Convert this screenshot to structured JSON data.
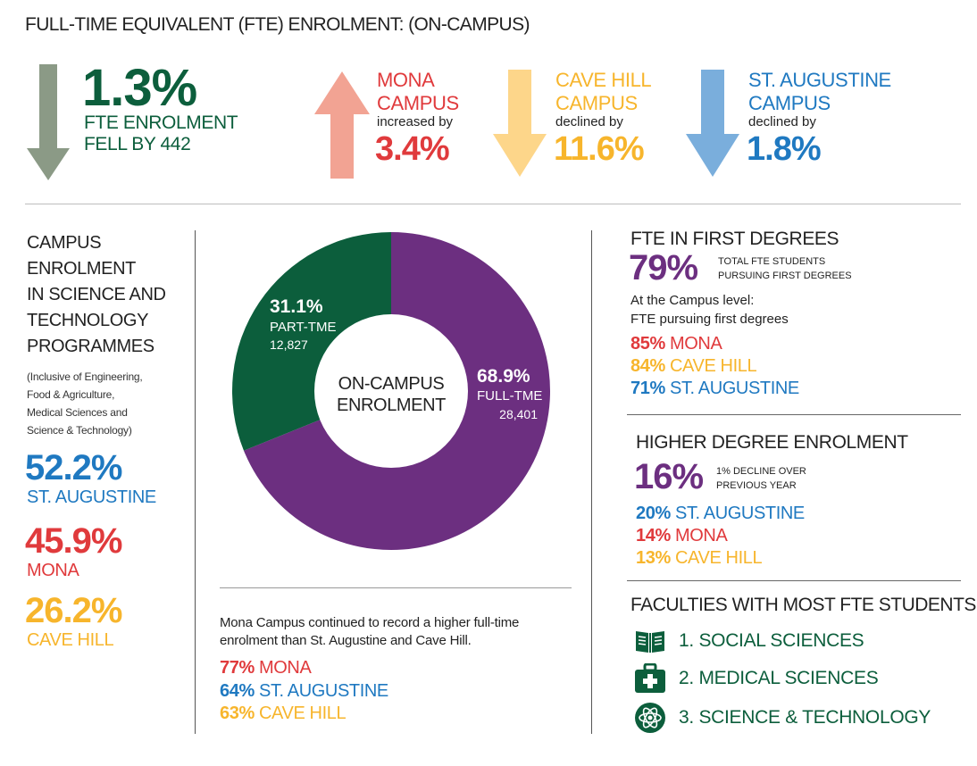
{
  "title": "FULL-TIME EQUIVALENT (FTE) ENROLMENT: (ON-CAMPUS)",
  "colors": {
    "green": "#0c5e3c",
    "grey_green_arrow": "#8b9a86",
    "mona_red": "#e03a3c",
    "mona_arrow": "#f2a393",
    "cave_hill_yellow": "#f7b52c",
    "cave_hill_arrow": "#fdd68a",
    "st_augustine_blue": "#1f79c1",
    "st_augustine_arrow": "#7aaedc",
    "purple": "#6c2f80"
  },
  "headline": {
    "value": "1.3%",
    "line1": "FTE ENROLMENT",
    "line2": "FELL BY 442",
    "icon": "arrow-down-icon"
  },
  "campus_changes": [
    {
      "line1": "MONA",
      "line2": "CAMPUS",
      "direction_text": "increased by",
      "value": "3.4%",
      "icon": "arrow-up-icon"
    },
    {
      "line1": "CAVE HILL",
      "line2": "CAMPUS",
      "direction_text": "declined by",
      "value": "11.6%",
      "icon": "arrow-down-icon"
    },
    {
      "line1": "ST. AUGUSTINE",
      "line2": "CAMPUS",
      "direction_text": "declined by",
      "value": "1.8%",
      "icon": "arrow-down-icon"
    }
  ],
  "science_tech": {
    "heading_lines": [
      "CAMPUS",
      "ENROLMENT",
      "IN SCIENCE AND",
      "TECHNOLOGY",
      "PROGRAMMES"
    ],
    "note_lines": [
      "(Inclusive of Engineering,",
      "Food & Agriculture,",
      "Medical Sciences and",
      "Science & Technology)"
    ],
    "stats": [
      {
        "value": "52.2%",
        "label": "ST. AUGUSTINE"
      },
      {
        "value": "45.9%",
        "label": "MONA"
      },
      {
        "value": "26.2%",
        "label": "CAVE HILL"
      }
    ]
  },
  "chart_data": {
    "type": "pie",
    "title": "",
    "center_label_lines": [
      "ON-CAMPUS",
      "ENROLMENT"
    ],
    "slices": [
      {
        "label": "PART-TME",
        "percent_label": "31.1%",
        "value": 12827,
        "value_label": "12,827",
        "color": "#0c5e3c"
      },
      {
        "label": "FULL-TME",
        "percent_label": "68.9%",
        "value": 28401,
        "value_label": "28,401",
        "color": "#6c2f80"
      }
    ]
  },
  "fulltime_note": {
    "text_lines": [
      "Mona Campus continued to record a higher full-time",
      "enrolment than St. Augustine and Cave Hill."
    ],
    "stats": [
      {
        "value": "77%",
        "label": "MONA"
      },
      {
        "value": "64%",
        "label": "ST. AUGUSTINE"
      },
      {
        "value": "63%",
        "label": "CAVE HILL"
      }
    ]
  },
  "first_degrees": {
    "heading": "FTE IN FIRST DEGREES",
    "value": "79%",
    "sub_lines": [
      "TOTAL FTE STUDENTS",
      "PURSUING FIRST DEGREES"
    ],
    "campus_lines": [
      "At the Campus level:",
      "FTE pursuing first degrees"
    ],
    "stats": [
      {
        "value": "85%",
        "label": "MONA"
      },
      {
        "value": "84%",
        "label": "CAVE HILL"
      },
      {
        "value": "71%",
        "label": "ST. AUGUSTINE"
      }
    ]
  },
  "higher_degree": {
    "heading": "HIGHER DEGREE ENROLMENT",
    "value": "16%",
    "sub_lines": [
      "1% DECLINE OVER",
      "PREVIOUS YEAR"
    ],
    "stats": [
      {
        "value": "20%",
        "label": "ST. AUGUSTINE"
      },
      {
        "value": "14%",
        "label": "MONA"
      },
      {
        "value": "13%",
        "label": "CAVE HILL"
      }
    ]
  },
  "faculties": {
    "heading": "FACULTIES WITH MOST FTE STUDENTS",
    "items": [
      {
        "label": "1.  SOCIAL SCIENCES",
        "icon": "book-icon"
      },
      {
        "label": "2.  MEDICAL SCIENCES",
        "icon": "medical-kit-icon"
      },
      {
        "label": "3.  SCIENCE & TECHNOLOGY",
        "icon": "atom-icon"
      }
    ]
  }
}
